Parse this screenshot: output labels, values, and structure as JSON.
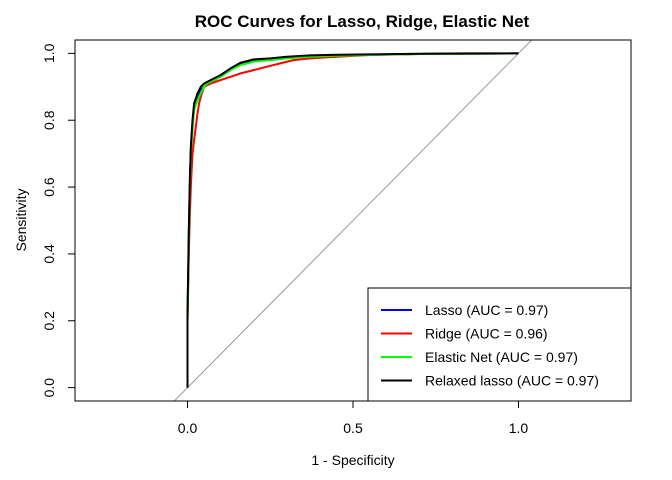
{
  "chart_data": {
    "type": "line",
    "title": "ROC Curves for Lasso, Ridge, Elastic Net",
    "xlabel": "1 - Specificity",
    "ylabel": "Sensitivity",
    "xlim": [
      -0.34,
      1.34
    ],
    "ylim": [
      -0.04,
      1.04
    ],
    "x_ticks": [
      0.0,
      0.5,
      1.0
    ],
    "x_tick_labels": [
      "0.0",
      "0.5",
      "1.0"
    ],
    "y_ticks": [
      0.0,
      0.2,
      0.4,
      0.6,
      0.8,
      1.0
    ],
    "y_tick_labels": [
      "0.0",
      "0.2",
      "0.4",
      "0.6",
      "0.8",
      "1.0"
    ],
    "legend_position": "bottom-right",
    "reference_line": {
      "from": [
        -0.04,
        -0.04
      ],
      "to": [
        1.04,
        1.04
      ],
      "color": "#999999"
    },
    "series": [
      {
        "name": "Lasso (AUC = 0.97)",
        "color": "#0000FF",
        "x": [
          0.0,
          0.0,
          0.004,
          0.007,
          0.01,
          0.015,
          0.02,
          0.03,
          0.04,
          0.05,
          0.06,
          0.08,
          0.1,
          0.13,
          0.16,
          0.2,
          0.25,
          0.3,
          0.37,
          0.45,
          0.55,
          0.7,
          0.85,
          1.0
        ],
        "y": [
          0.0,
          0.2,
          0.45,
          0.6,
          0.7,
          0.78,
          0.84,
          0.87,
          0.89,
          0.9,
          0.91,
          0.92,
          0.93,
          0.95,
          0.97,
          0.98,
          0.982,
          0.987,
          0.992,
          0.994,
          0.996,
          0.998,
          0.999,
          1.0
        ]
      },
      {
        "name": "Ridge (AUC = 0.96)",
        "color": "#FF0000",
        "x": [
          0.0,
          0.0,
          0.005,
          0.01,
          0.015,
          0.02,
          0.025,
          0.03,
          0.035,
          0.04,
          0.05,
          0.07,
          0.1,
          0.13,
          0.16,
          0.2,
          0.24,
          0.28,
          0.32,
          0.37,
          0.45,
          0.55,
          0.7,
          0.85,
          1.0
        ],
        "y": [
          0.0,
          0.2,
          0.45,
          0.6,
          0.7,
          0.74,
          0.78,
          0.82,
          0.85,
          0.87,
          0.9,
          0.91,
          0.92,
          0.93,
          0.94,
          0.95,
          0.96,
          0.97,
          0.98,
          0.985,
          0.99,
          0.995,
          0.998,
          0.999,
          1.0
        ]
      },
      {
        "name": "Elastic Net (AUC = 0.97)",
        "color": "#00FF00",
        "x": [
          0.0,
          0.0,
          0.004,
          0.007,
          0.01,
          0.015,
          0.02,
          0.03,
          0.04,
          0.05,
          0.06,
          0.08,
          0.1,
          0.13,
          0.16,
          0.2,
          0.25,
          0.3,
          0.37,
          0.45,
          0.55,
          0.7,
          0.85,
          1.0
        ],
        "y": [
          0.0,
          0.2,
          0.44,
          0.6,
          0.7,
          0.77,
          0.83,
          0.86,
          0.88,
          0.9,
          0.91,
          0.92,
          0.93,
          0.95,
          0.965,
          0.975,
          0.98,
          0.985,
          0.99,
          0.993,
          0.995,
          0.998,
          0.999,
          1.0
        ]
      },
      {
        "name": "Relaxed lasso (AUC = 0.97)",
        "color": "#000000",
        "x": [
          0.0,
          0.0,
          0.004,
          0.007,
          0.01,
          0.015,
          0.02,
          0.03,
          0.04,
          0.05,
          0.06,
          0.08,
          0.1,
          0.13,
          0.16,
          0.2,
          0.25,
          0.3,
          0.37,
          0.45,
          0.55,
          0.7,
          0.85,
          1.0
        ],
        "y": [
          0.0,
          0.22,
          0.47,
          0.62,
          0.72,
          0.8,
          0.85,
          0.88,
          0.9,
          0.91,
          0.915,
          0.925,
          0.935,
          0.955,
          0.972,
          0.982,
          0.985,
          0.99,
          0.994,
          0.996,
          0.997,
          0.999,
          1.0,
          1.0
        ]
      }
    ]
  }
}
